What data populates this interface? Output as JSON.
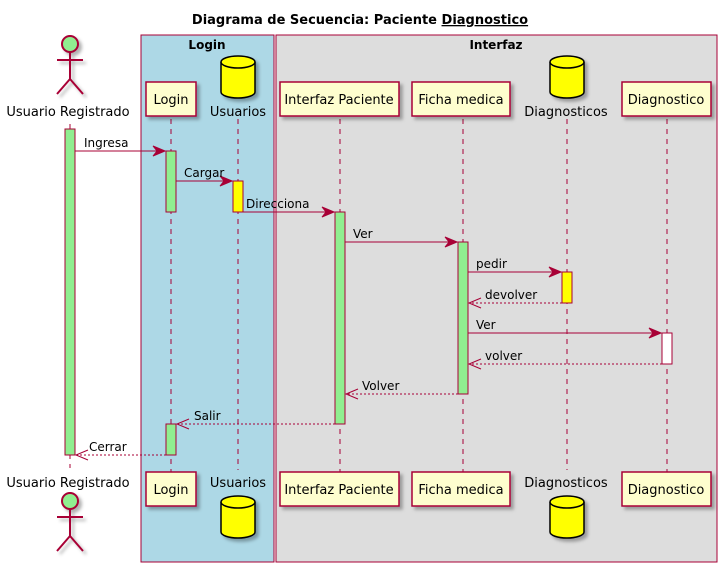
{
  "diagram": {
    "title_prefix": "Diagrama de Secuencia: Paciente",
    "title_underlined": "Diagnostico",
    "boxes": [
      {
        "label": "Login"
      },
      {
        "label": "Interfaz"
      }
    ],
    "participants": [
      {
        "key": "usuario",
        "label": "Usuario Registrado",
        "kind": "actor"
      },
      {
        "key": "login",
        "label": "Login",
        "kind": "participant"
      },
      {
        "key": "usuarios",
        "label": "Usuarios",
        "kind": "database"
      },
      {
        "key": "interfaz",
        "label": "Interfaz Paciente",
        "kind": "participant"
      },
      {
        "key": "ficha",
        "label": "Ficha medica",
        "kind": "participant"
      },
      {
        "key": "diagnosticos",
        "label": "Diagnosticos",
        "kind": "database"
      },
      {
        "key": "diagnostico",
        "label": "Diagnostico",
        "kind": "participant"
      }
    ],
    "messages": [
      {
        "from": "usuario",
        "to": "login",
        "label": "Ingresa",
        "style": "solid"
      },
      {
        "from": "login",
        "to": "usuarios",
        "label": "Cargar",
        "style": "solid"
      },
      {
        "from": "usuarios",
        "to": "interfaz",
        "label": "Direcciona",
        "style": "solid"
      },
      {
        "from": "interfaz",
        "to": "ficha",
        "label": "Ver",
        "style": "solid"
      },
      {
        "from": "ficha",
        "to": "diagnosticos",
        "label": "pedir",
        "style": "solid"
      },
      {
        "from": "diagnosticos",
        "to": "ficha",
        "label": "devolver",
        "style": "dashed"
      },
      {
        "from": "ficha",
        "to": "diagnostico",
        "label": "Ver",
        "style": "solid"
      },
      {
        "from": "diagnostico",
        "to": "ficha",
        "label": "volver",
        "style": "dashed"
      },
      {
        "from": "ficha",
        "to": "interfaz",
        "label": "Volver",
        "style": "dashed"
      },
      {
        "from": "interfaz",
        "to": "login",
        "label": "Salir",
        "style": "dashed"
      },
      {
        "from": "login",
        "to": "usuario",
        "label": "Cerrar",
        "style": "dashed"
      }
    ],
    "colors": {
      "arrow": "#A80036",
      "participant_fill": "#FEFECE",
      "activation_green": "#90EE90",
      "activation_yellow": "#FFFF00",
      "activation_white": "#FFFFFF",
      "database_fill": "#FFFF00",
      "actor_fill": "#90EE90",
      "login_box": "#ADD8E6",
      "interfaz_box": "#DDDDDD"
    }
  }
}
